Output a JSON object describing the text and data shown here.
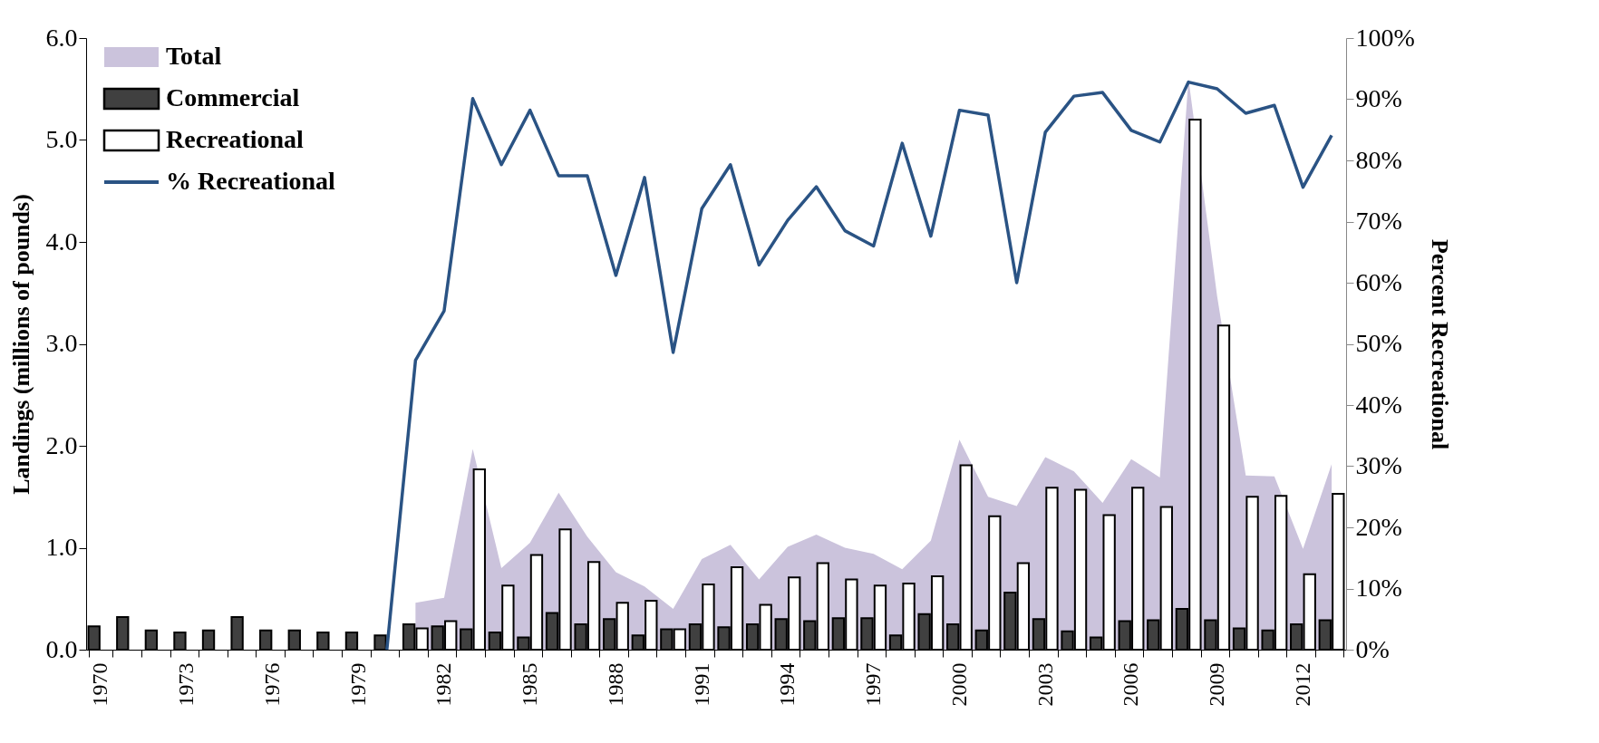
{
  "chart_data": {
    "type": "bar",
    "xlabel": null,
    "ylabel": "Landings (millions of pounds)",
    "y2label": "Percent Recreational",
    "categories": [
      "1970",
      null,
      null,
      "1973",
      null,
      null,
      "1976",
      null,
      null,
      "1979",
      null,
      null,
      "1982",
      null,
      null,
      "1985",
      null,
      null,
      "1988",
      null,
      null,
      "1991",
      null,
      null,
      "1994",
      null,
      null,
      "1997",
      null,
      null,
      "2000",
      null,
      null,
      "2003",
      null,
      null,
      "2006",
      null,
      null,
      "2009",
      null,
      null,
      "2012",
      null
    ],
    "series": [
      {
        "name": "Total",
        "type": "area",
        "color": "#cbc3dc",
        "values": [
          null,
          null,
          null,
          null,
          null,
          null,
          null,
          null,
          null,
          null,
          null,
          0.46,
          0.51,
          1.97,
          0.8,
          1.05,
          1.54,
          1.11,
          0.76,
          0.62,
          0.4,
          0.89,
          1.03,
          0.69,
          1.01,
          1.13,
          1.0,
          0.94,
          0.79,
          1.07,
          2.06,
          1.5,
          1.41,
          1.89,
          1.75,
          1.44,
          1.87,
          1.69,
          5.6,
          3.47,
          1.71,
          1.7,
          0.99,
          1.82
        ]
      },
      {
        "name": "Commercial",
        "color": "#404040",
        "values": [
          0.23,
          0.32,
          0.19,
          0.17,
          0.19,
          0.32,
          0.19,
          0.19,
          0.17,
          0.17,
          0.14,
          0.25,
          0.23,
          0.2,
          0.17,
          0.12,
          0.36,
          0.25,
          0.3,
          0.14,
          0.2,
          0.25,
          0.22,
          0.25,
          0.3,
          0.28,
          0.31,
          0.31,
          0.14,
          0.35,
          0.25,
          0.19,
          0.56,
          0.3,
          0.18,
          0.12,
          0.28,
          0.29,
          0.4,
          0.29,
          0.21,
          0.19,
          0.25,
          0.29
        ]
      },
      {
        "name": "Recreational",
        "color": "#ffffff",
        "values": [
          null,
          null,
          null,
          null,
          null,
          null,
          null,
          null,
          null,
          null,
          null,
          0.21,
          0.28,
          1.77,
          0.63,
          0.93,
          1.18,
          0.86,
          0.46,
          0.48,
          0.2,
          0.64,
          0.81,
          0.44,
          0.71,
          0.85,
          0.69,
          0.63,
          0.65,
          0.72,
          1.81,
          1.31,
          0.85,
          1.59,
          1.57,
          1.32,
          1.59,
          1.4,
          5.2,
          3.18,
          1.5,
          1.51,
          0.74,
          1.53
        ]
      },
      {
        "name": "% Recreational",
        "type": "line",
        "axis": "y2",
        "color": "#2a5384",
        "values": [
          null,
          null,
          null,
          null,
          null,
          null,
          null,
          null,
          null,
          null,
          0,
          47.3,
          55.4,
          90.1,
          79.3,
          88.2,
          77.5,
          77.5,
          61.2,
          77.2,
          48.6,
          72.1,
          79.3,
          62.9,
          70.2,
          75.7,
          68.5,
          66.0,
          82.8,
          67.6,
          88.2,
          87.4,
          60.0,
          84.6,
          90.5,
          91.1,
          84.9,
          83.0,
          92.8,
          91.7,
          87.7,
          89.0,
          75.6,
          84.1
        ]
      }
    ],
    "ylim": [
      0,
      6
    ],
    "yticks": [
      {
        "value": 0,
        "label": "0.0"
      },
      {
        "value": 1,
        "label": "1.0"
      },
      {
        "value": 2,
        "label": "2.0"
      },
      {
        "value": 3,
        "label": "3.0"
      },
      {
        "value": 4,
        "label": "4.0"
      },
      {
        "value": 5,
        "label": "5.0"
      },
      {
        "value": 6,
        "label": "6.0"
      }
    ],
    "y2lim": [
      0,
      100
    ],
    "y2ticks": [
      {
        "value": 0,
        "label": "0%"
      },
      {
        "value": 10,
        "label": "10%"
      },
      {
        "value": 20,
        "label": "20%"
      },
      {
        "value": 30,
        "label": "30%"
      },
      {
        "value": 40,
        "label": "40%"
      },
      {
        "value": 50,
        "label": "50%"
      },
      {
        "value": 60,
        "label": "60%"
      },
      {
        "value": 70,
        "label": "70%"
      },
      {
        "value": 80,
        "label": "80%"
      },
      {
        "value": 90,
        "label": "90%"
      },
      {
        "value": 100,
        "label": "100%"
      }
    ],
    "grid": false,
    "legend": "top left"
  }
}
